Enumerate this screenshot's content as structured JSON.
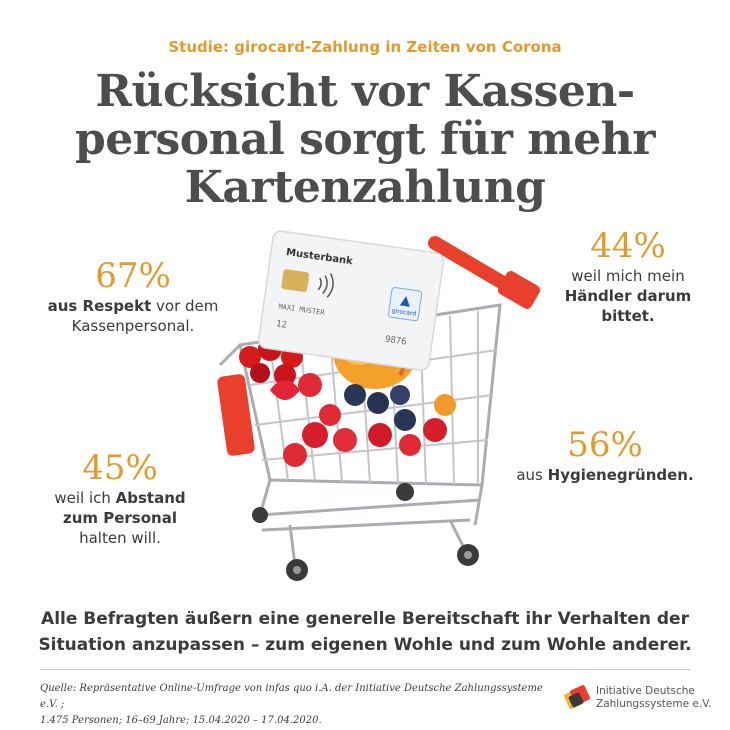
{
  "header": {
    "subtitle": "Studie: girocard-Zahlung in Zeiten von Corona",
    "title_lines": [
      "Rücksicht vor Kassen-",
      "personal sorgt für mehr",
      "Kartenzahlung"
    ]
  },
  "stats": {
    "s67": {
      "percent": "67%",
      "bold": "aus Respekt",
      "rest1": " vor dem",
      "line2": "Kassenpersonal."
    },
    "s44": {
      "percent": "44%",
      "line1": "weil mich mein",
      "bold1": "Händler darum",
      "bold2": "bittet."
    },
    "s45": {
      "percent": "45%",
      "pre": "weil ich ",
      "bold1": "Abstand",
      "bold2": "zum Personal",
      "line3": "halten will."
    },
    "s56": {
      "percent": "56%",
      "pre": "aus ",
      "bold": "Hygienegründen."
    }
  },
  "card": {
    "bank": "Musterbank",
    "holder": "MAXI MUSTER",
    "brand": "girocard",
    "number_fragments": [
      "12",
      "9876"
    ]
  },
  "footer": {
    "note_lines": [
      "Alle Befragten äußern eine generelle Bereitschaft ihr Verhalten der",
      "Situation anzupassen – zum eigenen Wohle und zum Wohle anderer."
    ],
    "source_lines": [
      "Quelle: Repräsentative Online-Umfrage von infas quo i.A. der Initiative Deutsche Zahlungssysteme e.V. ;",
      "1.475 Personen; 16–69 Jahre; 15.04.2020 – 17.04.2020."
    ],
    "org_lines": [
      "Initiative Deutsche",
      "Zahlungssysteme e.V."
    ]
  },
  "colors": {
    "accent": "#e39a2d",
    "text": "#3b3b3b",
    "title": "#4d4d4d",
    "cart_red": "#e8402c"
  }
}
